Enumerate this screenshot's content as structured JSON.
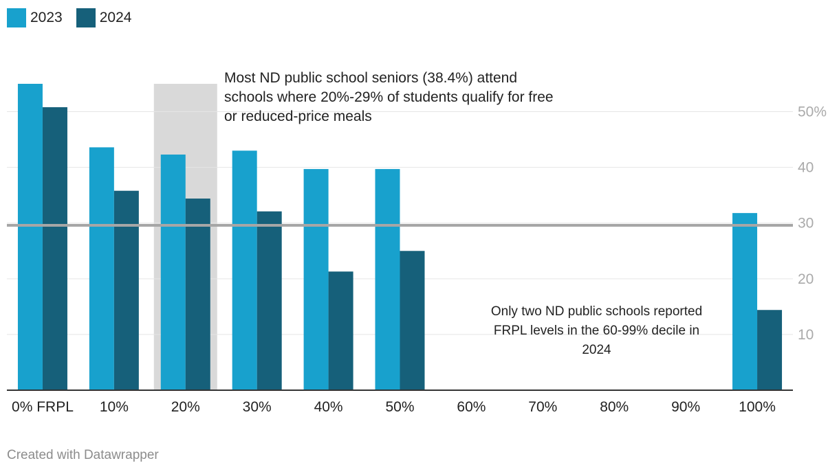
{
  "legend": [
    {
      "label": "2023",
      "color": "#18a1cd"
    },
    {
      "label": "2024",
      "color": "#16607a"
    }
  ],
  "annotations": {
    "top": "Most ND public school seniors (38.4%) attend schools where 20%-29% of students qualify for free or reduced-price meals",
    "bottom": "Only two ND public schools reported FRPL levels in the 60-99% decile in 2024"
  },
  "footer": "Created with Datawrapper",
  "colors": {
    "y2023": "#18a1cd",
    "y2024": "#16607a",
    "highlight": "#d9d9d9",
    "refline": "#a6a6a6",
    "grid": "#e5e5e5",
    "axis": "#333333",
    "tick": "#aaaaaa"
  },
  "chart_data": {
    "type": "bar",
    "categories": [
      "0% FRPL",
      "10%",
      "20%",
      "30%",
      "40%",
      "50%",
      "60%",
      "70%",
      "80%",
      "90%",
      "100%"
    ],
    "series": [
      {
        "name": "2023",
        "values": [
          55,
          43.6,
          42.3,
          43,
          39.7,
          39.7,
          null,
          null,
          null,
          null,
          31.8
        ]
      },
      {
        "name": "2024",
        "values": [
          50.8,
          35.8,
          34.4,
          32.1,
          21.3,
          25,
          null,
          null,
          null,
          null,
          14.4
        ]
      }
    ],
    "ylim": [
      0,
      55
    ],
    "yticks": [
      10,
      20,
      30,
      40,
      50
    ],
    "ytick_labels": [
      "10",
      "20",
      "30",
      "40",
      "50%"
    ],
    "reference_line": 29.6,
    "highlight_category": "20%",
    "highlight_top": 55,
    "title": "",
    "xlabel": "",
    "ylabel": ""
  }
}
